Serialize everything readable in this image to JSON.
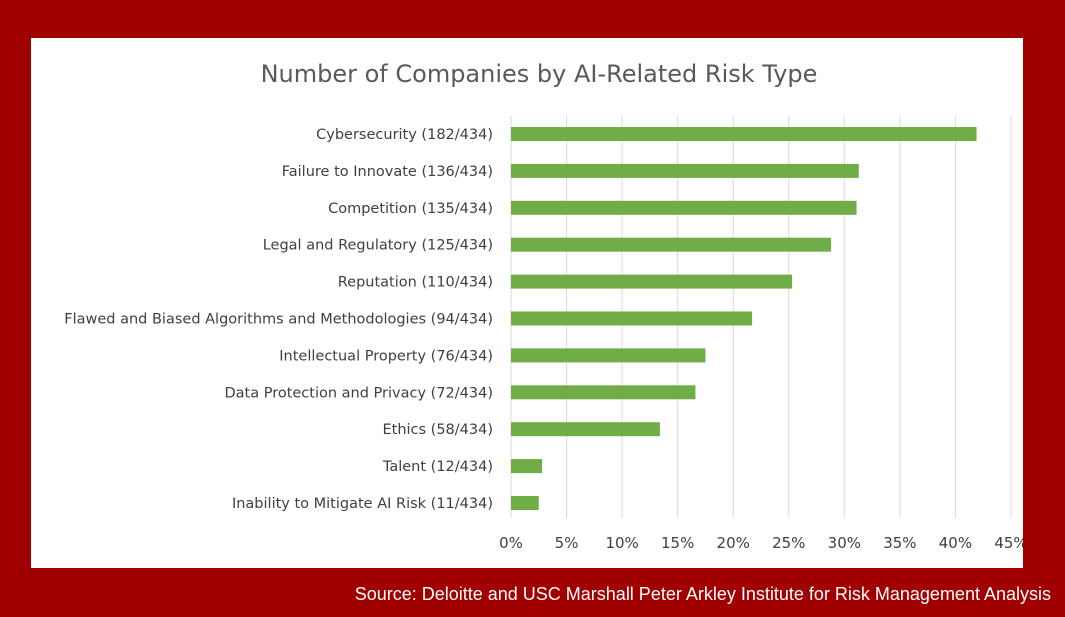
{
  "colors": {
    "frame": "#A00000",
    "bar": "#70AD47",
    "grid": "#D9D9D9",
    "text": "#404040",
    "title": "#595959",
    "source_text": "#FFFFFF"
  },
  "source": "Source: Deloitte and USC Marshall Peter Arkley Institute for Risk Management Analysis",
  "chart_data": {
    "type": "bar",
    "orientation": "horizontal",
    "title": "Number of Companies by AI-Related Risk Type",
    "xlabel": "",
    "ylabel": "",
    "xlim": [
      0,
      0.45
    ],
    "x_ticks": [
      "0%",
      "5%",
      "10%",
      "15%",
      "20%",
      "25%",
      "30%",
      "35%",
      "40%",
      "45%"
    ],
    "grid": "vertical",
    "legend": "none",
    "categories": [
      "Cybersecurity (182/434)",
      "Failure to Innovate (136/434)",
      "Competition (135/434)",
      "Legal and Regulatory (125/434)",
      "Reputation (110/434)",
      "Flawed and Biased Algorithms and Methodologies (94/434)",
      "Intellectual Property (76/434)",
      "Data Protection and Privacy (72/434)",
      "Ethics (58/434)",
      "Talent (12/434)",
      "Inability to Mitigate AI Risk (11/434)"
    ],
    "values": [
      0.419,
      0.313,
      0.311,
      0.288,
      0.253,
      0.217,
      0.175,
      0.166,
      0.134,
      0.028,
      0.025
    ]
  }
}
